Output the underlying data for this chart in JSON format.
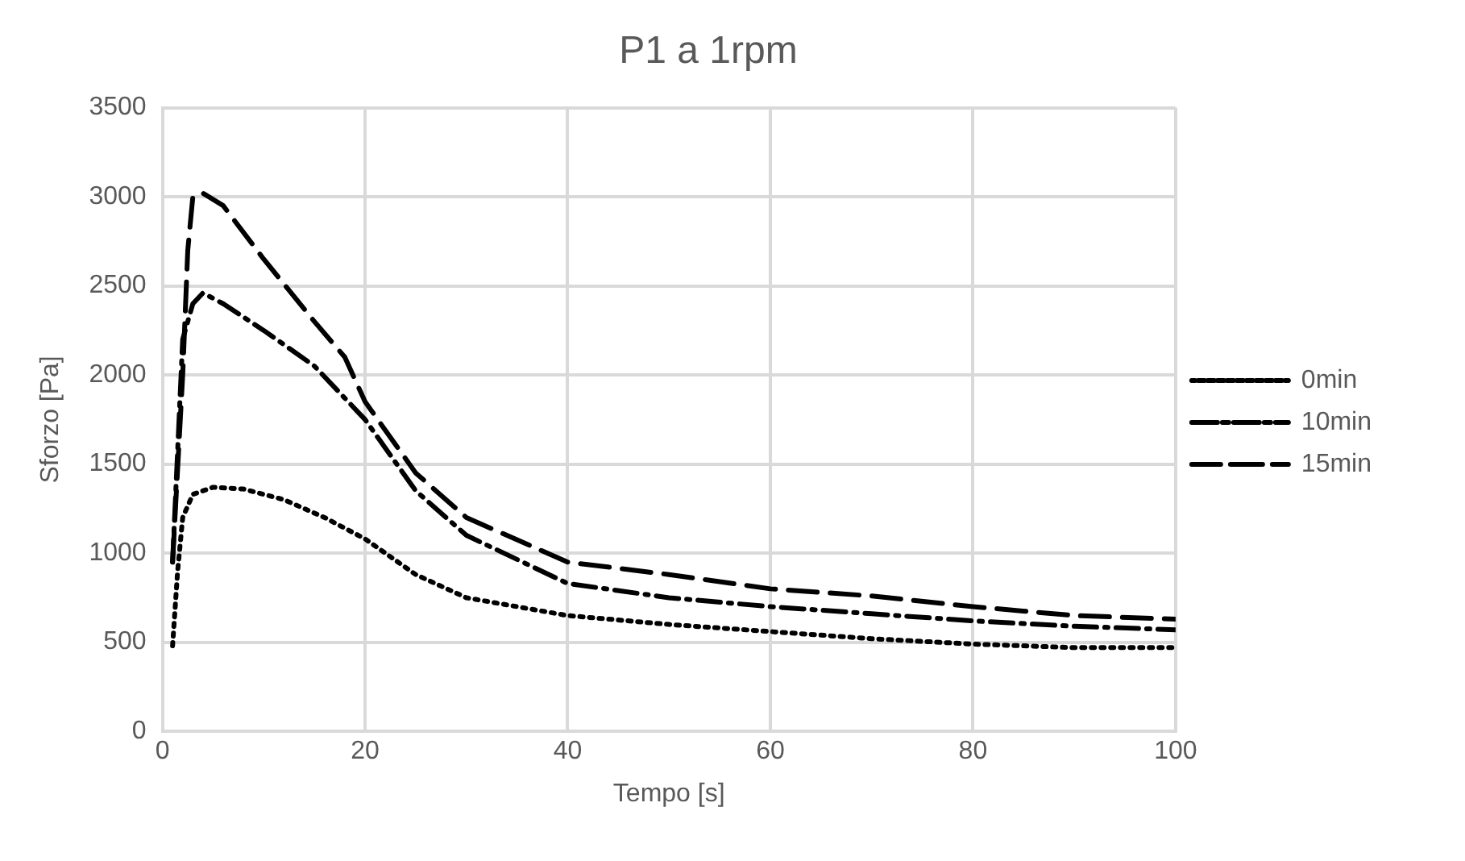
{
  "chart_data": {
    "type": "line",
    "title": "P1 a 1rpm",
    "xlabel": "Tempo [s]",
    "ylabel": "Sforzo [Pa]",
    "xlim": [
      0,
      100
    ],
    "xticks": [
      0,
      20,
      40,
      60,
      80,
      100
    ],
    "ylim": [
      0,
      3500
    ],
    "yticks": [
      0,
      500,
      1000,
      1500,
      2000,
      2500,
      3000,
      3500
    ],
    "grid": true,
    "legend": "right",
    "marker": "none",
    "series": [
      {
        "name": "0min",
        "color": "#000000",
        "line_style": "dotted",
        "x": [
          1,
          1.5,
          2,
          3,
          5,
          8,
          12,
          16,
          20,
          25,
          30,
          40,
          50,
          60,
          70,
          80,
          90,
          100
        ],
        "values": [
          480,
          900,
          1200,
          1330,
          1370,
          1360,
          1300,
          1200,
          1080,
          880,
          750,
          650,
          600,
          560,
          520,
          490,
          470,
          470
        ]
      },
      {
        "name": "10min",
        "color": "#000000",
        "line_style": "dashed",
        "x": [
          1,
          2,
          3,
          4,
          6,
          10,
          15,
          20,
          25,
          30,
          40,
          50,
          60,
          70,
          80,
          90,
          100
        ],
        "values": [
          950,
          2200,
          2400,
          2460,
          2400,
          2250,
          2050,
          1750,
          1350,
          1100,
          830,
          750,
          700,
          660,
          620,
          590,
          570
        ]
      },
      {
        "name": "15min",
        "color": "#000000",
        "line_style": "dashed",
        "x": [
          1,
          2,
          2.5,
          3,
          4,
          6,
          10,
          15,
          18,
          20,
          25,
          30,
          40,
          50,
          60,
          70,
          80,
          90,
          100
        ],
        "values": [
          950,
          2000,
          2700,
          3000,
          3020,
          2950,
          2650,
          2300,
          2100,
          1850,
          1450,
          1200,
          950,
          880,
          800,
          760,
          700,
          650,
          630
        ]
      }
    ]
  }
}
